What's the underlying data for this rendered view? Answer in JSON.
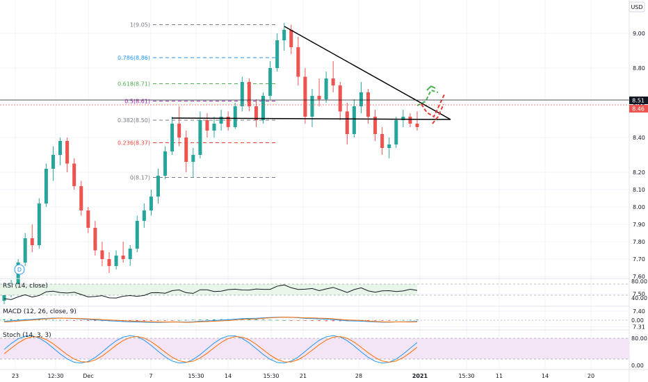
{
  "currency": "USD",
  "colors": {
    "up": "#26a69a",
    "down": "#ef5350",
    "grid": "#f0f3fa",
    "axis_text": "#131722",
    "fib_1": "#787b86",
    "fib_786": "#2196f3",
    "fib_618": "#4caf50",
    "fib_5": "#9c27b0",
    "fib_382": "#787b86",
    "fib_236": "#f44336",
    "fib_0": "#787b86",
    "rsi_line": "#131722",
    "rsi_band": "#c8e6c9",
    "stoch_band": "#e1bee7",
    "macd_line": "#2196f3",
    "macd_signal": "#ff6d00",
    "stoch_k": "#2196f3",
    "stoch_d": "#ff6d00",
    "price_tag_current": "#ef5350",
    "price_tag_last": "#131722"
  },
  "price_axis": {
    "ticks": [
      "9.00",
      "8.80",
      "8.60",
      "8.40",
      "8.20",
      "8.10",
      "8.00",
      "7.90",
      "7.80",
      "7.70",
      "7.60",
      "7.50",
      "7.40",
      "7.31"
    ],
    "tag_last": "8.51",
    "tag_current": "8.46"
  },
  "time_axis": {
    "labels": [
      "23",
      "12:30",
      "Dec",
      "7",
      "15:30",
      "14",
      "15:30",
      "21",
      "28",
      "2021",
      "15:30",
      "11",
      "14",
      "20"
    ]
  },
  "fib_levels": [
    {
      "label": "1(9.05)",
      "value": 9.05,
      "color_key": "fib_1"
    },
    {
      "label": "0.786(8.86)",
      "value": 8.86,
      "color_key": "fib_786"
    },
    {
      "label": "0.618(8.71)",
      "value": 8.71,
      "color_key": "fib_618"
    },
    {
      "label": "0.5(8.61)",
      "value": 8.61,
      "color_key": "fib_5"
    },
    {
      "label": "0.382(8.50)",
      "value": 8.5,
      "color_key": "fib_382"
    },
    {
      "label": "0.236(8.37)",
      "value": 8.37,
      "color_key": "fib_236"
    },
    {
      "label": "0(8.17)",
      "value": 8.17,
      "color_key": "fib_0"
    }
  ],
  "panes": {
    "rsi": {
      "label": "RSI (14, close)",
      "ticks": [
        "80.00",
        "40.00"
      ]
    },
    "macd": {
      "label": "MACD (12, 26, close, 9)",
      "ticks": [
        "0.00"
      ]
    },
    "stoch": {
      "label": "Stoch (14, 3, 3)",
      "ticks": [
        "80.00",
        "0.00"
      ]
    }
  },
  "dividend_marker": "D",
  "chart_data": {
    "type": "candlestick",
    "y_range": [
      7.31,
      9.1
    ],
    "ohlc": [
      [
        7.46,
        7.52,
        7.44,
        7.5
      ],
      [
        7.5,
        7.58,
        7.48,
        7.55
      ],
      [
        7.55,
        7.7,
        7.53,
        7.68
      ],
      [
        7.68,
        7.85,
        7.66,
        7.82
      ],
      [
        7.82,
        7.9,
        7.74,
        7.78
      ],
      [
        7.78,
        8.05,
        7.76,
        8.02
      ],
      [
        8.02,
        8.25,
        8.0,
        8.22
      ],
      [
        8.22,
        8.35,
        8.15,
        8.3
      ],
      [
        8.3,
        8.4,
        8.24,
        8.38
      ],
      [
        8.38,
        8.4,
        8.2,
        8.25
      ],
      [
        8.25,
        8.28,
        8.1,
        8.12
      ],
      [
        8.12,
        8.15,
        7.95,
        7.98
      ],
      [
        7.98,
        8.0,
        7.85,
        7.88
      ],
      [
        7.88,
        7.92,
        7.72,
        7.75
      ],
      [
        7.75,
        7.8,
        7.66,
        7.7
      ],
      [
        7.7,
        7.74,
        7.62,
        7.66
      ],
      [
        7.66,
        7.75,
        7.64,
        7.72
      ],
      [
        7.72,
        7.8,
        7.68,
        7.7
      ],
      [
        7.7,
        7.78,
        7.66,
        7.76
      ],
      [
        7.76,
        7.95,
        7.74,
        7.92
      ],
      [
        7.92,
        8.02,
        7.88,
        7.98
      ],
      [
        7.98,
        8.1,
        7.95,
        8.06
      ],
      [
        8.06,
        8.22,
        8.02,
        8.18
      ],
      [
        8.18,
        8.35,
        8.16,
        8.32
      ],
      [
        8.32,
        8.52,
        8.3,
        8.48
      ],
      [
        8.48,
        8.58,
        8.35,
        8.4
      ],
      [
        8.4,
        8.44,
        8.2,
        8.26
      ],
      [
        8.26,
        8.34,
        8.17,
        8.3
      ],
      [
        8.3,
        8.55,
        8.28,
        8.5
      ],
      [
        8.5,
        8.54,
        8.4,
        8.44
      ],
      [
        8.44,
        8.52,
        8.4,
        8.48
      ],
      [
        8.48,
        8.56,
        8.44,
        8.52
      ],
      [
        8.52,
        8.55,
        8.44,
        8.46
      ],
      [
        8.46,
        8.6,
        8.45,
        8.58
      ],
      [
        8.58,
        8.75,
        8.55,
        8.72
      ],
      [
        8.72,
        8.74,
        8.55,
        8.58
      ],
      [
        8.58,
        8.62,
        8.46,
        8.5
      ],
      [
        8.5,
        8.66,
        8.48,
        8.64
      ],
      [
        8.64,
        8.84,
        8.62,
        8.8
      ],
      [
        8.8,
        9.0,
        8.78,
        8.96
      ],
      [
        8.96,
        9.06,
        8.9,
        9.02
      ],
      [
        9.02,
        9.05,
        8.88,
        8.92
      ],
      [
        8.92,
        8.98,
        8.7,
        8.75
      ],
      [
        8.75,
        8.8,
        8.48,
        8.52
      ],
      [
        8.52,
        8.68,
        8.46,
        8.64
      ],
      [
        8.64,
        8.74,
        8.58,
        8.62
      ],
      [
        8.62,
        8.78,
        8.6,
        8.74
      ],
      [
        8.74,
        8.84,
        8.66,
        8.7
      ],
      [
        8.7,
        8.72,
        8.5,
        8.55
      ],
      [
        8.55,
        8.6,
        8.36,
        8.42
      ],
      [
        8.42,
        8.62,
        8.4,
        8.58
      ],
      [
        8.58,
        8.72,
        8.54,
        8.66
      ],
      [
        8.66,
        8.68,
        8.48,
        8.52
      ],
      [
        8.52,
        8.56,
        8.38,
        8.42
      ],
      [
        8.42,
        8.46,
        8.3,
        8.34
      ],
      [
        8.34,
        8.4,
        8.28,
        8.36
      ],
      [
        8.36,
        8.52,
        8.34,
        8.5
      ],
      [
        8.5,
        8.56,
        8.46,
        8.52
      ],
      [
        8.52,
        8.54,
        8.46,
        8.48
      ],
      [
        8.48,
        8.55,
        8.44,
        8.46
      ]
    ]
  }
}
